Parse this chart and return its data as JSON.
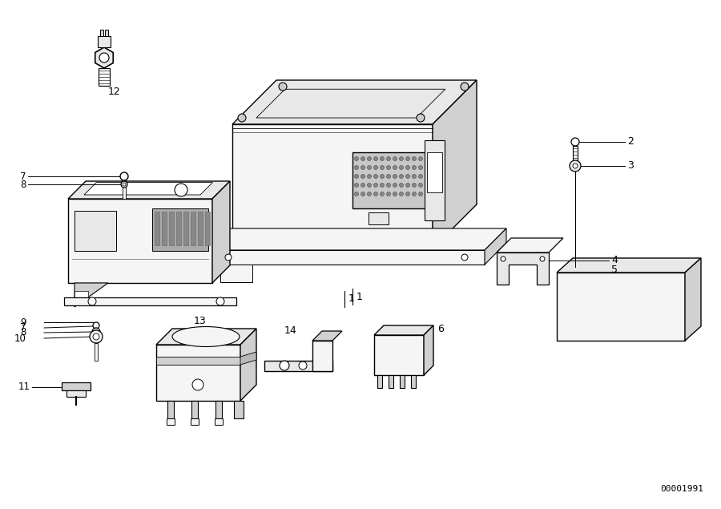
{
  "background_color": "#ffffff",
  "line_color": "#000000",
  "part_number": "00001991",
  "lw": 1.0,
  "fill_light": "#f5f5f5",
  "fill_mid": "#e8e8e8",
  "fill_dark": "#d0d0d0",
  "fill_white": "#ffffff"
}
